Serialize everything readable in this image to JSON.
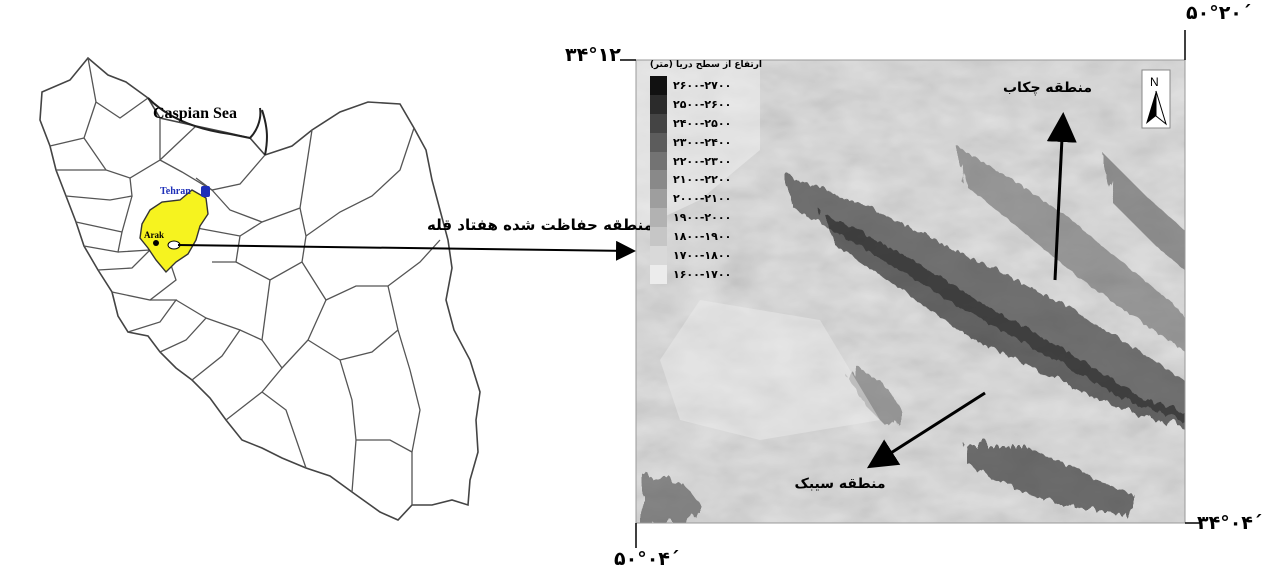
{
  "iran_map": {
    "sea_label": "Caspian Sea",
    "city_capital": "Tehran",
    "city_local": "Arak",
    "region_color": "#f6f31f",
    "capital_marker_color": "#1e2fb8"
  },
  "study_area_label": "منطقه حفاظت شده هفتاد قله",
  "dem_map": {
    "legend": {
      "title": "ارتفاع از سطح دریا (متر)",
      "classes": [
        {
          "range": "۲۶۰۰-۲۷۰۰",
          "color": "#111111"
        },
        {
          "range": "۲۵۰۰-۲۶۰۰",
          "color": "#2b2b2b"
        },
        {
          "range": "۲۴۰۰-۲۵۰۰",
          "color": "#444444"
        },
        {
          "range": "۲۳۰۰-۲۴۰۰",
          "color": "#5c5c5c"
        },
        {
          "range": "۲۲۰۰-۲۳۰۰",
          "color": "#737373"
        },
        {
          "range": "۲۱۰۰-۲۲۰۰",
          "color": "#898989"
        },
        {
          "range": "۲۰۰۰-۲۱۰۰",
          "color": "#9e9e9e"
        },
        {
          "range": "۱۹۰۰-۲۰۰۰",
          "color": "#b2b2b2"
        },
        {
          "range": "۱۸۰۰-۱۹۰۰",
          "color": "#c6c6c6"
        },
        {
          "range": "۱۷۰۰-۱۸۰۰",
          "color": "#d9d9d9"
        },
        {
          "range": "۱۶۰۰-۱۷۰۰",
          "color": "#ececec"
        }
      ]
    },
    "north_label": "N",
    "region_chekab": "منطقه چکاب",
    "region_sibak": "منطقه سیبک",
    "coords": {
      "top_left_lat": "۳۴°۱۲",
      "top_right_lon": "۵۰°۲۰´",
      "bottom_left_lon": "۵۰°۰۴´",
      "bottom_right_lat": "۳۴°۰۴´"
    }
  }
}
